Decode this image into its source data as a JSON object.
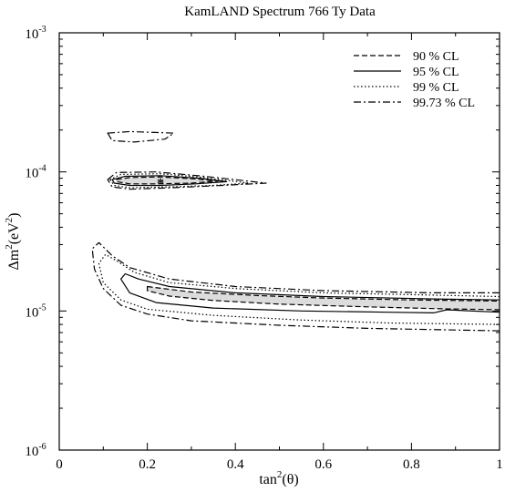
{
  "chart_data": {
    "type": "contour",
    "title": "KamLAND Spectrum 766 Ty Data",
    "xlabel": {
      "base": "tan",
      "sup": "2",
      "rest": "(θ)"
    },
    "ylabel": {
      "pre": "Δm",
      "sup": "2",
      "mid": "(eV",
      "sup2": "2",
      "post": ")"
    },
    "xlim": [
      0,
      1
    ],
    "ylim": [
      1e-06,
      0.001
    ],
    "yscale": "log",
    "x_ticks": [
      {
        "value": 0,
        "label": "0"
      },
      {
        "value": 0.2,
        "label": "0.2"
      },
      {
        "value": 0.4,
        "label": "0.4"
      },
      {
        "value": 0.6,
        "label": "0.6"
      },
      {
        "value": 0.8,
        "label": "0.8"
      },
      {
        "value": 1,
        "label": "1"
      }
    ],
    "y_ticks": [
      {
        "value": 1e-06,
        "base": "10",
        "exp": "-6"
      },
      {
        "value": 1e-05,
        "base": "10",
        "exp": "-5"
      },
      {
        "value": 0.0001,
        "base": "10",
        "exp": "-4"
      },
      {
        "value": 0.001,
        "base": "10",
        "exp": "-3"
      }
    ],
    "legend_position": "top-right",
    "legend": [
      {
        "label": "90 % CL",
        "style": "dashed"
      },
      {
        "label": "95 % CL",
        "style": "solid"
      },
      {
        "label": "99 % CL",
        "style": "dotted"
      },
      {
        "label": "99.73 % CL",
        "style": "dashdot"
      }
    ],
    "best_fit": {
      "x": 0.23,
      "y": 8.5e-05,
      "marker": "*"
    },
    "fill_color": "#dcdcdc",
    "regions": [
      {
        "name": "upper-island",
        "cl": "99.73 % CL",
        "style": "dashdot",
        "fill": false,
        "closed": true,
        "points": [
          [
            0.11,
            0.00019
          ],
          [
            0.16,
            0.000195
          ],
          [
            0.26,
            0.00019
          ],
          [
            0.24,
            0.000172
          ],
          [
            0.17,
            0.000164
          ],
          [
            0.12,
            0.000168
          ],
          [
            0.11,
            0.00019
          ]
        ]
      },
      {
        "name": "middle-island",
        "cl": "99.73 % CL",
        "style": "dashdot",
        "fill": false,
        "closed": true,
        "points": [
          [
            0.11,
            8.8e-05
          ],
          [
            0.13,
            9.9e-05
          ],
          [
            0.22,
            0.0001
          ],
          [
            0.33,
            9.3e-05
          ],
          [
            0.47,
            8.3e-05
          ],
          [
            0.37,
            8e-05
          ],
          [
            0.26,
            7.7e-05
          ],
          [
            0.16,
            7.5e-05
          ],
          [
            0.12,
            7.8e-05
          ],
          [
            0.11,
            8.8e-05
          ]
        ]
      },
      {
        "name": "middle-island",
        "cl": "99 % CL",
        "style": "dotted",
        "fill": false,
        "closed": true,
        "points": [
          [
            0.115,
            8.8e-05
          ],
          [
            0.14,
            9.6e-05
          ],
          [
            0.23,
            9.7e-05
          ],
          [
            0.33,
            9.1e-05
          ],
          [
            0.43,
            8.3e-05
          ],
          [
            0.35,
            8e-05
          ],
          [
            0.25,
            7.8e-05
          ],
          [
            0.16,
            7.7e-05
          ],
          [
            0.125,
            8e-05
          ],
          [
            0.115,
            8.8e-05
          ]
        ]
      },
      {
        "name": "middle-island",
        "cl": "95 % CL",
        "style": "solid",
        "fill": false,
        "closed": true,
        "points": [
          [
            0.12,
            8.8e-05
          ],
          [
            0.15,
            9.3e-05
          ],
          [
            0.23,
            9.4e-05
          ],
          [
            0.32,
            9e-05
          ],
          [
            0.38,
            8.5e-05
          ],
          [
            0.31,
            8.2e-05
          ],
          [
            0.23,
            8e-05
          ],
          [
            0.16,
            8e-05
          ],
          [
            0.125,
            8.3e-05
          ],
          [
            0.12,
            8.8e-05
          ]
        ]
      },
      {
        "name": "middle-island",
        "cl": "90 % CL",
        "style": "dashed",
        "fill": true,
        "closed": true,
        "points": [
          [
            0.13,
            8.8e-05
          ],
          [
            0.16,
            9.1e-05
          ],
          [
            0.23,
            9.2e-05
          ],
          [
            0.31,
            8.9e-05
          ],
          [
            0.36,
            8.6e-05
          ],
          [
            0.3,
            8.3e-05
          ],
          [
            0.22,
            8.2e-05
          ],
          [
            0.16,
            8.2e-05
          ],
          [
            0.13,
            8.5e-05
          ],
          [
            0.13,
            8.8e-05
          ]
        ]
      },
      {
        "name": "lower-band",
        "cl": "99.73 % CL",
        "style": "dashdot",
        "fill": false,
        "closed": false,
        "points": [
          [
            1.0,
            1.35e-05
          ],
          [
            0.85,
            1.35e-05
          ],
          [
            0.6,
            1.4e-05
          ],
          [
            0.4,
            1.5e-05
          ],
          [
            0.25,
            1.7e-05
          ],
          [
            0.16,
            2.05e-05
          ],
          [
            0.12,
            2.5e-05
          ],
          [
            0.09,
            3.1e-05
          ],
          [
            0.075,
            2.8e-05
          ],
          [
            0.08,
            2e-05
          ],
          [
            0.1,
            1.45e-05
          ],
          [
            0.14,
            1.1e-05
          ],
          [
            0.2,
            9.5e-06
          ],
          [
            0.3,
            8.5e-06
          ],
          [
            0.5,
            7.9e-06
          ],
          [
            0.7,
            7.5e-06
          ],
          [
            1.0,
            7.2e-06
          ]
        ]
      },
      {
        "name": "lower-band",
        "cl": "99 % CL",
        "style": "dotted",
        "fill": false,
        "closed": false,
        "points": [
          [
            1.0,
            1.27e-05
          ],
          [
            0.85,
            1.3e-05
          ],
          [
            0.6,
            1.35e-05
          ],
          [
            0.4,
            1.45e-05
          ],
          [
            0.25,
            1.6e-05
          ],
          [
            0.17,
            1.9e-05
          ],
          [
            0.13,
            2.3e-05
          ],
          [
            0.105,
            2.55e-05
          ],
          [
            0.09,
            2.2e-05
          ],
          [
            0.1,
            1.6e-05
          ],
          [
            0.14,
            1.2e-05
          ],
          [
            0.2,
            1.03e-05
          ],
          [
            0.35,
            9.3e-06
          ],
          [
            0.55,
            8.6e-06
          ],
          [
            0.75,
            8.2e-06
          ],
          [
            1.0,
            8e-06
          ]
        ]
      },
      {
        "name": "lower-band",
        "cl": "95 % CL",
        "style": "solid",
        "fill": false,
        "closed": false,
        "points": [
          [
            1.0,
            1.2e-05
          ],
          [
            0.85,
            1.22e-05
          ],
          [
            0.6,
            1.27e-05
          ],
          [
            0.4,
            1.35e-05
          ],
          [
            0.25,
            1.5e-05
          ],
          [
            0.18,
            1.7e-05
          ],
          [
            0.15,
            1.85e-05
          ],
          [
            0.14,
            1.7e-05
          ],
          [
            0.16,
            1.35e-05
          ],
          [
            0.22,
            1.15e-05
          ],
          [
            0.35,
            1.05e-05
          ],
          [
            0.55,
            1e-05
          ],
          [
            0.75,
            9.8e-06
          ],
          [
            0.85,
            9.7e-06
          ],
          [
            0.88,
            1.02e-05
          ],
          [
            1.0,
            9.8e-06
          ]
        ]
      },
      {
        "name": "lower-band",
        "cl": "90 % CL",
        "style": "dashed",
        "fill": true,
        "closed": true,
        "points": [
          [
            0.2,
            1.5e-05
          ],
          [
            0.3,
            1.37e-05
          ],
          [
            0.45,
            1.29e-05
          ],
          [
            0.6,
            1.24e-05
          ],
          [
            0.8,
            1.2e-05
          ],
          [
            1.0,
            1.18e-05
          ],
          [
            1.0,
            1.02e-05
          ],
          [
            0.85,
            1.04e-05
          ],
          [
            0.7,
            1.07e-05
          ],
          [
            0.5,
            1.12e-05
          ],
          [
            0.35,
            1.19e-05
          ],
          [
            0.25,
            1.28e-05
          ],
          [
            0.2,
            1.4e-05
          ],
          [
            0.2,
            1.5e-05
          ]
        ]
      }
    ]
  }
}
